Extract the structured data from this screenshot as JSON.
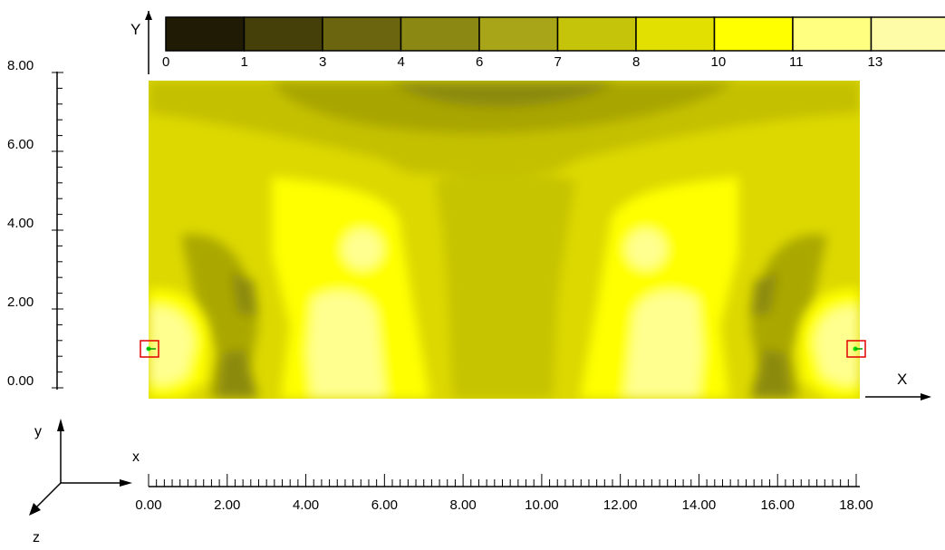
{
  "colorbar": {
    "axis_label": "Y",
    "ticks": [
      "0",
      "1",
      "3",
      "4",
      "6",
      "7",
      "8",
      "10",
      "11",
      "13"
    ],
    "colors": [
      "#1f1b04",
      "#453f0a",
      "#6a650e",
      "#8b8813",
      "#a8a618",
      "#c6c40a",
      "#e2e000",
      "#ffff00",
      "#ffff80",
      "#fffca8"
    ]
  },
  "plot": {
    "x_axis_label": "X",
    "y_tick_labels": [
      "8.00",
      "6.00",
      "4.00",
      "2.00",
      "0.00"
    ],
    "x_tick_labels": [
      "0.00",
      "2.00",
      "4.00",
      "6.00",
      "8.00",
      "10.00",
      "12.00",
      "14.00",
      "16.00",
      "18.00"
    ],
    "markers": [
      "left-support",
      "right-support"
    ]
  },
  "triad": {
    "x": "x",
    "y": "y",
    "z": "z"
  }
}
